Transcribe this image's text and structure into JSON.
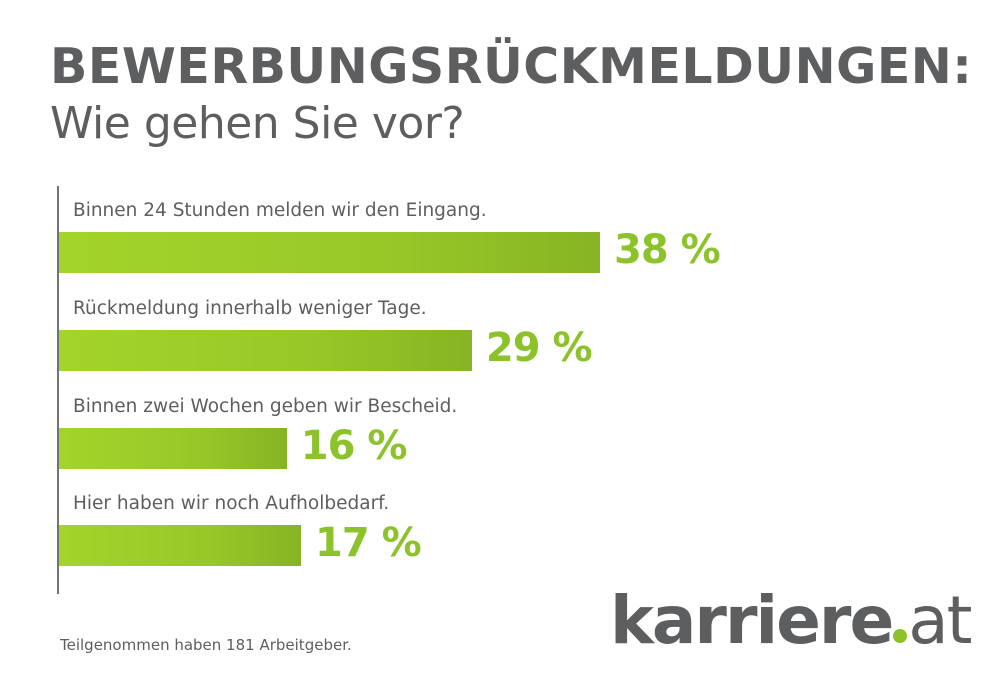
{
  "chart_data": {
    "type": "bar",
    "orientation": "horizontal",
    "title": "BEWERBUNGSRÜCKMELDUNGEN:",
    "subtitle": "Wie gehen Sie vor?",
    "categories": [
      "Binnen 24 Stunden melden wir den Eingang.",
      "Rückmeldung innerhalb weniger Tage.",
      "Binnen zwei Wochen geben wir Bescheid.",
      "Hier haben wir noch Aufholbedarf."
    ],
    "values": [
      38,
      29,
      16,
      17
    ],
    "value_labels": [
      "38 %",
      "29 %",
      "16 %",
      "17 %"
    ],
    "unit": "%",
    "xlim": [
      0,
      38
    ],
    "grid": false,
    "xlabel": "",
    "ylabel": ""
  },
  "footnote": "Teilgenommen haben 181 Arbeitgeber.",
  "logo": {
    "brand": "karriere",
    "tld": "at"
  },
  "colors": {
    "bar": "#98c828",
    "value_text": "#8cc22a",
    "text": "#5d5e60"
  }
}
